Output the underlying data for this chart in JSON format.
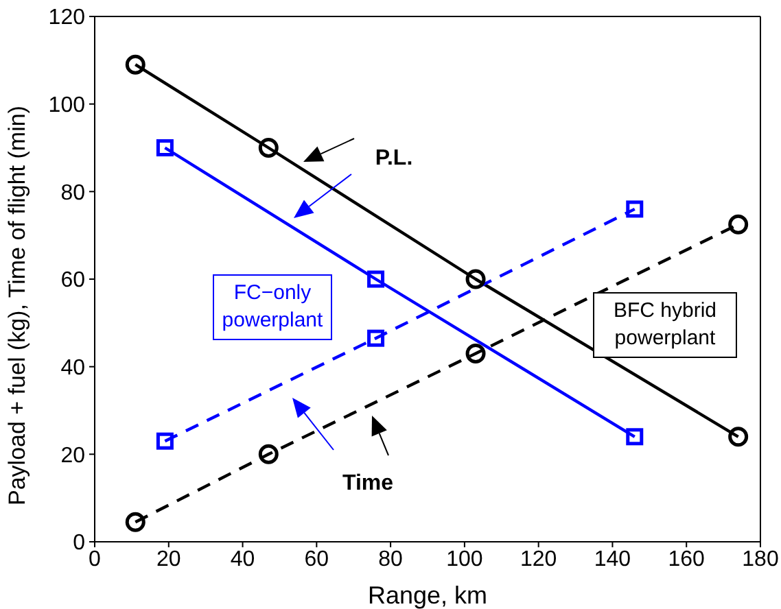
{
  "chart_data": {
    "type": "line",
    "xlabel": "Range, km",
    "ylabel": "Payload + fuel (kg), Time of flight (min)",
    "xlim": [
      0,
      180
    ],
    "xticks": [
      0,
      20,
      40,
      60,
      80,
      100,
      120,
      140,
      160,
      180
    ],
    "ylim": [
      0,
      120
    ],
    "yticks": [
      0,
      20,
      40,
      60,
      80,
      100,
      120
    ],
    "series": [
      {
        "x": [
          11,
          47,
          103,
          174
        ],
        "values": [
          109,
          90,
          60,
          24
        ],
        "color": "#000000",
        "marker": "circle",
        "line_style": "solid"
      },
      {
        "x": [
          11,
          47,
          103,
          174
        ],
        "values": [
          4.5,
          20,
          43,
          72.5
        ],
        "color": "#000000",
        "marker": "circle",
        "line_style": "dashed"
      },
      {
        "x": [
          19,
          76,
          146
        ],
        "values": [
          90,
          60,
          24
        ],
        "color": "#0000ff",
        "marker": "square",
        "line_style": "solid"
      },
      {
        "x": [
          19,
          76,
          146
        ],
        "values": [
          23,
          46.5,
          76
        ],
        "color": "#0000ff",
        "marker": "square",
        "line_style": "dashed"
      }
    ],
    "annotations": [
      "P.L.",
      "Time",
      "FC−only powerplant",
      "BFC hybrid powerplant"
    ]
  }
}
